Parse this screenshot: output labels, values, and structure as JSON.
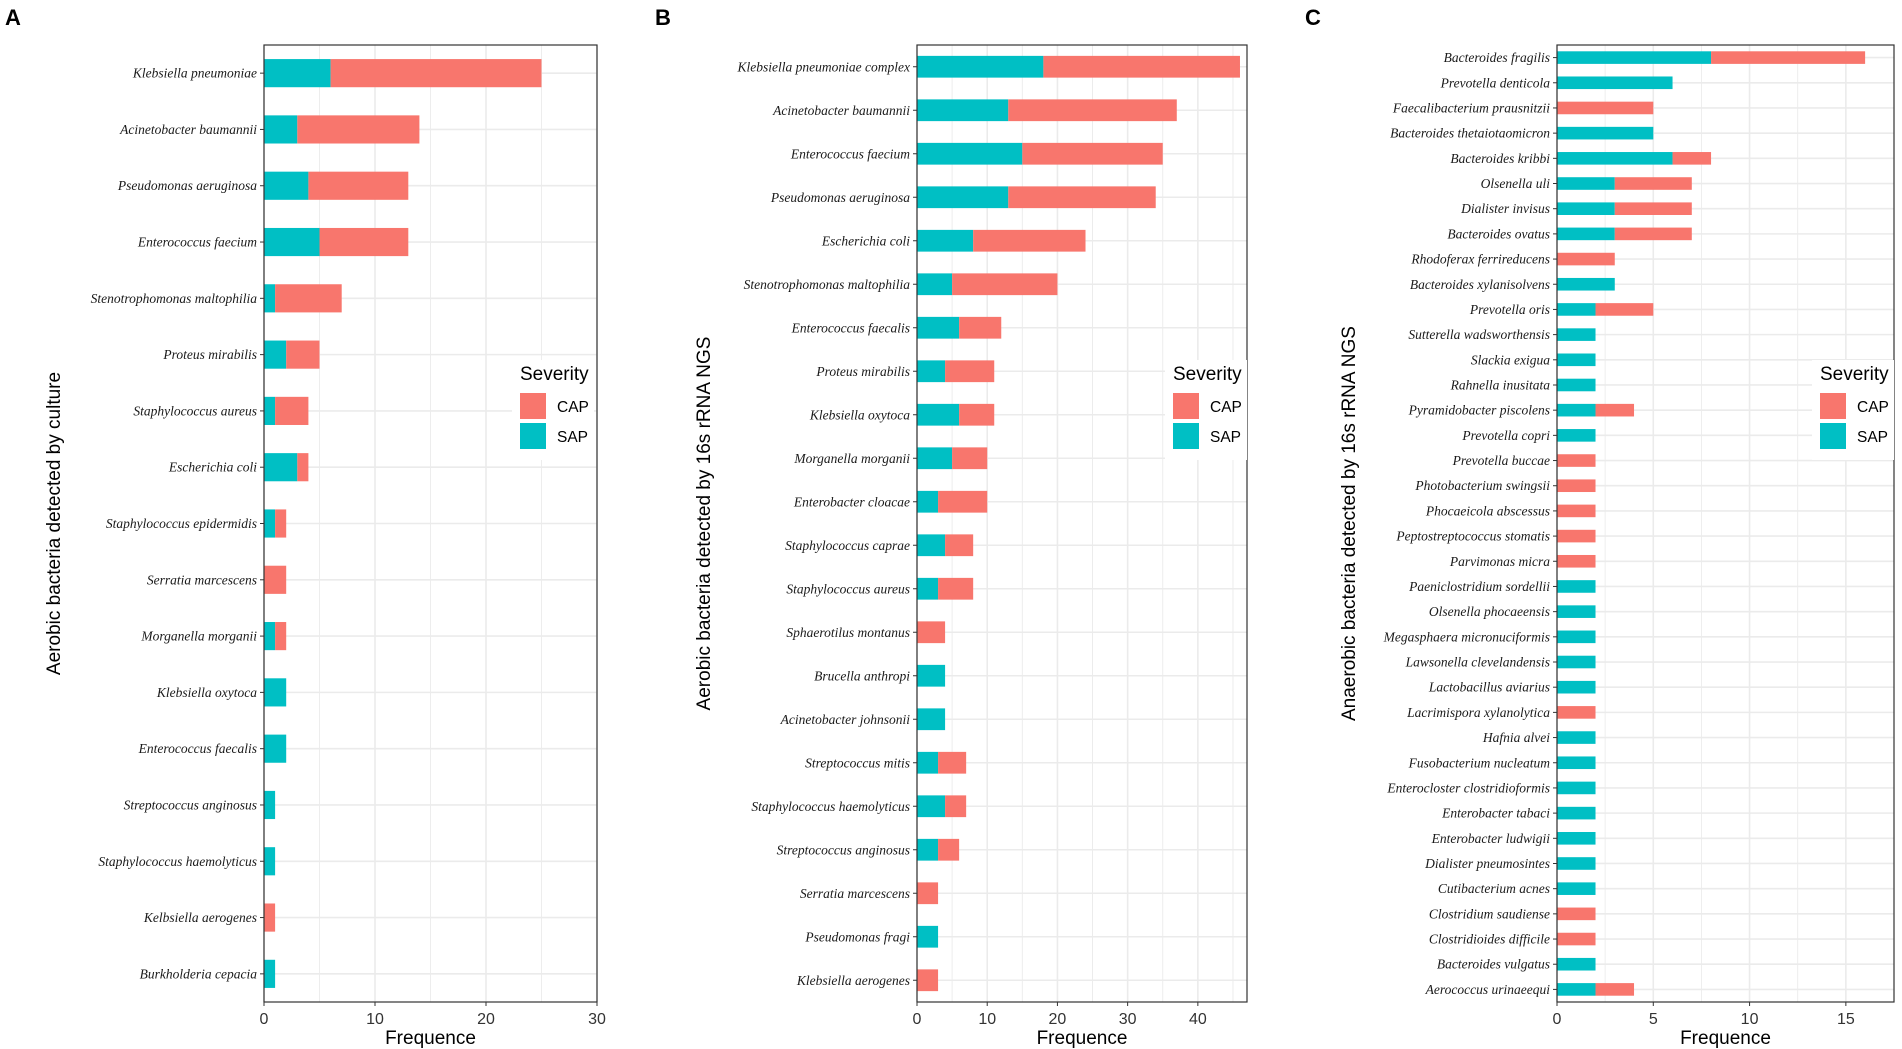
{
  "colors": {
    "CAP": "#F8766D",
    "SAP": "#00BFC4",
    "grid": "#EBEBEB",
    "panel_border": "#333333"
  },
  "legend": {
    "title": "Severity",
    "entries": [
      "CAP",
      "SAP"
    ]
  },
  "chart_data": [
    {
      "type": "bar",
      "stacked": true,
      "orientation": "horizontal",
      "panel": "A",
      "xlabel": "Frequence",
      "ylabel": "Aerobic bacteria detected by culture",
      "xlim": [
        0,
        30
      ],
      "xticks": [
        0,
        10,
        20,
        30
      ],
      "categories": [
        "Klebsiella pneumoniae",
        "Acinetobacter baumannii",
        "Pseudomonas aeruginosa",
        "Enterococcus faecium",
        "Stenotrophomonas maltophilia",
        "Proteus mirabilis",
        "Staphylococcus aureus",
        "Escherichia coli",
        "Staphylococcus epidermidis",
        "Serratia marcescens",
        "Morganella morganii",
        "Klebsiella oxytoca",
        "Enterococcus faecalis",
        "Streptococcus anginosus",
        "Staphylococcus haemolyticus",
        "Kelbsiella aerogenes",
        "Burkholderia cepacia"
      ],
      "series": [
        {
          "name": "SAP",
          "values": [
            6,
            3,
            4,
            5,
            1,
            2,
            1,
            3,
            1,
            0,
            1,
            2,
            2,
            1,
            1,
            0,
            1
          ]
        },
        {
          "name": "CAP",
          "values": [
            19,
            11,
            9,
            8,
            6,
            3,
            3,
            1,
            1,
            2,
            1,
            0,
            0,
            0,
            0,
            1,
            0
          ]
        }
      ]
    },
    {
      "type": "bar",
      "stacked": true,
      "orientation": "horizontal",
      "panel": "B",
      "xlabel": "Frequence",
      "ylabel": "Aerobic bacteria detected by 16s rRNA NGS",
      "xlim": [
        0,
        47
      ],
      "xticks": [
        0,
        10,
        20,
        30,
        40
      ],
      "categories": [
        "Klebsiella pneumoniae complex",
        "Acinetobacter baumannii",
        "Enterococcus faecium",
        "Pseudomonas aeruginosa",
        "Escherichia coli",
        "Stenotrophomonas maltophilia",
        "Enterococcus faecalis",
        "Proteus mirabilis",
        "Klebsiella oxytoca",
        "Morganella morganii",
        "Enterobacter cloacae",
        "Staphylococcus caprae",
        "Staphylococcus aureus",
        "Sphaerotilus montanus",
        "Brucella anthropi",
        "Acinetobacter johnsonii",
        "Streptococcus mitis",
        "Staphylococcus haemolyticus",
        "Streptococcus anginosus",
        "Serratia marcescens",
        "Pseudomonas fragi",
        "Klebsiella aerogenes"
      ],
      "series": [
        {
          "name": "SAP",
          "values": [
            18,
            13,
            15,
            13,
            8,
            5,
            6,
            4,
            6,
            5,
            3,
            4,
            3,
            0,
            4,
            4,
            3,
            4,
            3,
            0,
            3,
            0
          ]
        },
        {
          "name": "CAP",
          "values": [
            28,
            24,
            20,
            21,
            16,
            15,
            6,
            7,
            5,
            5,
            7,
            4,
            5,
            4,
            0,
            0,
            4,
            3,
            3,
            3,
            0,
            3
          ]
        }
      ]
    },
    {
      "type": "bar",
      "stacked": true,
      "orientation": "horizontal",
      "panel": "C",
      "xlabel": "Frequence",
      "ylabel": "Anaerobic bacteria detected by 16s rRNA NGS",
      "xlim": [
        0,
        17.5
      ],
      "xticks": [
        0,
        5,
        10,
        15
      ],
      "categories": [
        "Bacteroides fragilis",
        "Prevotella denticola",
        "Faecalibacterium prausnitzii",
        "Bacteroides thetaiotaomicron",
        "Bacteroides kribbi",
        "Olsenella uli",
        "Dialister invisus",
        "Bacteroides ovatus",
        "Rhodoferax ferrireducens",
        "Bacteroides xylanisolvens",
        "Prevotella oris",
        "Sutterella wadsworthensis",
        "Slackia exigua",
        "Rahnella inusitata",
        "Pyramidobacter piscolens",
        "Prevotella copri",
        "Prevotella buccae",
        "Photobacterium swingsii",
        "Phocaeicola abscessus",
        "Peptostreptococcus stomatis",
        "Parvimonas micra",
        "Paeniclostridium sordellii",
        "Olsenella phocaeensis",
        "Megasphaera micronuciformis",
        "Lawsonella clevelandensis",
        "Lactobacillus aviarius",
        "Lacrimispora xylanolytica",
        "Hafnia alvei",
        "Fusobacterium nucleatum",
        "Enterocloster clostridioformis",
        "Enterobacter tabaci",
        "Enterobacter ludwigii",
        "Dialister pneumosintes",
        "Cutibacterium acnes",
        "Clostridium saudiense",
        "Clostridioides difficile",
        "Bacteroides vulgatus",
        "Aerococcus urinaeequi"
      ],
      "series": [
        {
          "name": "SAP",
          "values": [
            8,
            6,
            0,
            5,
            6,
            3,
            3,
            3,
            0,
            3,
            2,
            2,
            2,
            2,
            2,
            2,
            0,
            0,
            0,
            0,
            0,
            2,
            2,
            2,
            2,
            2,
            0,
            2,
            2,
            2,
            2,
            2,
            2,
            2,
            0,
            0,
            2,
            2
          ]
        },
        {
          "name": "CAP",
          "values": [
            8,
            0,
            5,
            0,
            2,
            4,
            4,
            4,
            3,
            0,
            3,
            0,
            0,
            0,
            2,
            0,
            2,
            2,
            2,
            2,
            2,
            0,
            0,
            0,
            0,
            0,
            2,
            0,
            0,
            0,
            0,
            0,
            0,
            0,
            2,
            2,
            0,
            2
          ]
        }
      ]
    }
  ]
}
